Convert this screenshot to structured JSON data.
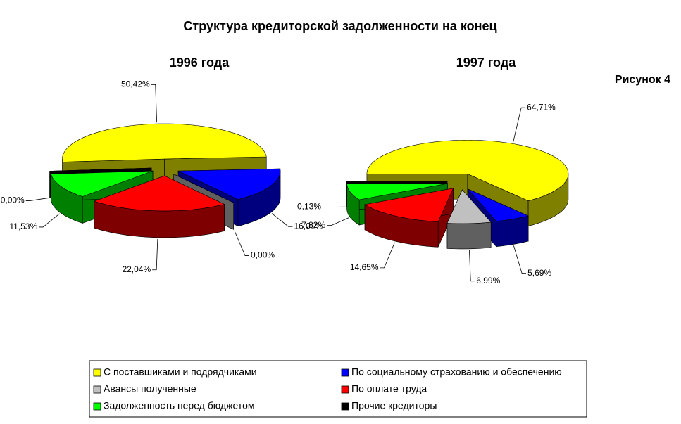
{
  "title": "Структура кредиторской задолженности на конец",
  "figure_label": "Рисунок 4",
  "chart_data": [
    {
      "type": "pie",
      "title": "1996 года",
      "categories": [
        "С поставшиками и подрядчиками",
        "По социальному страхованию и обеспечению",
        "Авансы полученные",
        "По оплате труда",
        "Задолженность перед бюджетом",
        "Прочие кредиторы"
      ],
      "colors": [
        "#ffff00",
        "#0000ff",
        "#c0c0c0",
        "#ff0000",
        "#00ff00",
        "#000000"
      ],
      "values": [
        50.42,
        16.01,
        0.0,
        22.04,
        11.53,
        0.0
      ],
      "value_labels": [
        "50,42%",
        "16,01%",
        "0,00%",
        "22,04%",
        "11,53%",
        "0,00%"
      ]
    },
    {
      "type": "pie",
      "title": "1997 года",
      "values": [
        64.71,
        5.69,
        6.99,
        14.65,
        7.82,
        0.13
      ],
      "value_labels": [
        "64,71%",
        "5,69%",
        "6,99%",
        "14,65%",
        "7,82%",
        "0,13%"
      ]
    }
  ]
}
